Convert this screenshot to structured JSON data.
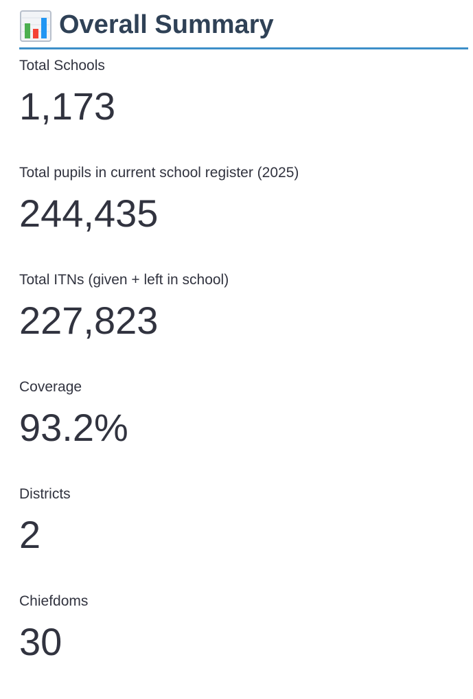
{
  "header": {
    "icon": "bar-chart-icon",
    "title": "Overall Summary",
    "accent_color": "#3d8fc8"
  },
  "metrics": [
    {
      "label": "Total Schools",
      "value": "1,173"
    },
    {
      "label": "Total pupils in current school register (2025)",
      "value": "244,435"
    },
    {
      "label": "Total ITNs (given + left in school)",
      "value": "227,823"
    },
    {
      "label": "Coverage",
      "value": "93.2%"
    },
    {
      "label": "Districts",
      "value": "2"
    },
    {
      "label": "Chiefdoms",
      "value": "30"
    }
  ]
}
